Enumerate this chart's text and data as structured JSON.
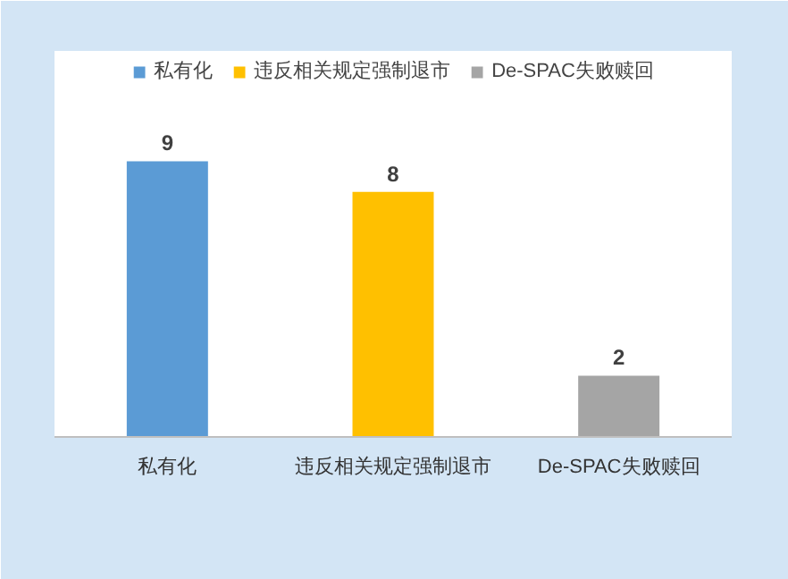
{
  "chart_data": {
    "type": "bar",
    "categories": [
      "私有化",
      "违反相关规定强制退市",
      "De-SPAC失败赎回"
    ],
    "series": [
      {
        "name": "私有化",
        "color": "#5b9bd5",
        "values": [
          9,
          null,
          null
        ]
      },
      {
        "name": "违反相关规定强制退市",
        "color": "#ffc000",
        "values": [
          null,
          8,
          null
        ]
      },
      {
        "name": "De-SPAC失败赎回",
        "color": "#a5a5a5",
        "values": [
          null,
          null,
          2
        ]
      }
    ],
    "data_labels": true,
    "legend": "top",
    "grid": false
  }
}
